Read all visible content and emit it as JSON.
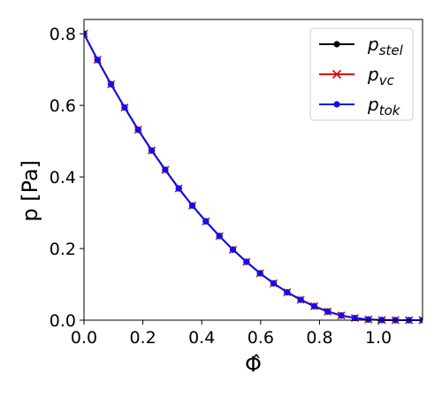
{
  "chart_data": {
    "type": "line",
    "title": "",
    "xlabel": "Φ̂",
    "ylabel": "p [Pa]",
    "xlim": [
      0,
      1.15
    ],
    "ylim": [
      0,
      0.84
    ],
    "x_ticks": [
      "0.0",
      "0.2",
      "0.4",
      "0.6",
      "0.8",
      "1.0"
    ],
    "x_tick_values": [
      0,
      0.2,
      0.4,
      0.6,
      0.8,
      1.0
    ],
    "y_ticks": [
      "0.0",
      "0.2",
      "0.4",
      "0.6",
      "0.8"
    ],
    "y_tick_values": [
      0,
      0.2,
      0.4,
      0.6,
      0.8
    ],
    "grid": false,
    "legend_position": "top-right",
    "x": [
      0,
      0.046,
      0.092,
      0.138,
      0.184,
      0.23,
      0.276,
      0.322,
      0.368,
      0.414,
      0.46,
      0.506,
      0.552,
      0.598,
      0.644,
      0.69,
      0.736,
      0.782,
      0.828,
      0.874,
      0.92,
      0.966,
      1.012,
      1.058,
      1.104,
      1.15
    ],
    "series": [
      {
        "name": "p_stel",
        "label_main": "p",
        "label_sub": "stel",
        "color": "#000000",
        "marker": "circle",
        "values": [
          0.8,
          0.727,
          0.659,
          0.594,
          0.532,
          0.474,
          0.42,
          0.368,
          0.32,
          0.276,
          0.235,
          0.197,
          0.163,
          0.131,
          0.103,
          0.078,
          0.057,
          0.039,
          0.024,
          0.013,
          0.006,
          0.002,
          0.0005,
          0.0001,
          0.0,
          0.0
        ]
      },
      {
        "name": "p_vc",
        "label_main": "p",
        "label_sub": "vc",
        "color": "#e00000",
        "marker": "x",
        "values": [
          0.8,
          0.727,
          0.659,
          0.594,
          0.532,
          0.474,
          0.42,
          0.368,
          0.32,
          0.276,
          0.235,
          0.197,
          0.163,
          0.131,
          0.103,
          0.078,
          0.057,
          0.039,
          0.024,
          0.013,
          0.006,
          0.002,
          0.0005,
          0.0001,
          0.0,
          0.0
        ]
      },
      {
        "name": "p_tok",
        "label_main": "p",
        "label_sub": "tok",
        "color": "#1010ee",
        "marker": "circle",
        "values": [
          0.8,
          0.727,
          0.659,
          0.594,
          0.532,
          0.474,
          0.42,
          0.368,
          0.32,
          0.276,
          0.235,
          0.197,
          0.163,
          0.131,
          0.103,
          0.078,
          0.057,
          0.039,
          0.024,
          0.013,
          0.006,
          0.002,
          0.0005,
          0.0001,
          0.0,
          0.0
        ]
      }
    ]
  }
}
